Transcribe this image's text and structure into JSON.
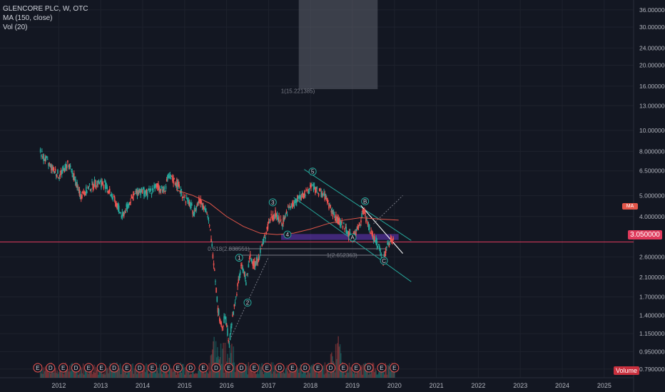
{
  "legend": {
    "symbol": "GLENCORE PLC, W, OTC",
    "ma": "MA (150, close)",
    "vol": "Vol (20)"
  },
  "last_price_label": "3.050000",
  "ma_tag": "MA",
  "volume_tag": "Volume",
  "colors": {
    "background": "#131722",
    "up": "#26a69a",
    "down": "#ef5350",
    "ma": "#e3564a",
    "channel": "#26a69a",
    "last_price": "#e03a5c",
    "zone": "#7b3fe4",
    "text": "#b2b5be"
  },
  "chart_data": {
    "type": "candlestick",
    "scale": "log",
    "ylim": [
      0.72,
      40.0
    ],
    "y_ticks": [
      "36.000000",
      "30.000000",
      "24.000000",
      "20.000000",
      "16.000000",
      "13.000000",
      "10.000000",
      "8.000000",
      "6.500000",
      "5.000000",
      "4.000000",
      "3.050000",
      "2.600000",
      "2.100000",
      "1.700000",
      "1.400000",
      "1.150000",
      "0.950000",
      "0.790000"
    ],
    "y_tick_values": [
      36,
      30,
      24,
      20,
      16,
      13,
      10,
      8,
      6.5,
      5,
      4,
      3.05,
      2.6,
      2.1,
      1.7,
      1.4,
      1.15,
      0.95,
      0.79
    ],
    "x_ticks": [
      "2012",
      "2013",
      "2014",
      "2015",
      "2016",
      "2017",
      "2018",
      "2019",
      "2020",
      "2021",
      "2022",
      "2023",
      "2024",
      "2025"
    ],
    "x_tick_years": [
      2012,
      2013,
      2014,
      2015,
      2016,
      2017,
      2018,
      2019,
      2020,
      2021,
      2022,
      2023,
      2024,
      2025
    ],
    "xlim": [
      2010.6,
      2025.7
    ],
    "price_path": [
      [
        2011.55,
        7.9
      ],
      [
        2011.7,
        7.2
      ],
      [
        2011.85,
        6.6
      ],
      [
        2012.0,
        6.2
      ],
      [
        2012.2,
        7.0
      ],
      [
        2012.35,
        6.1
      ],
      [
        2012.5,
        5.0
      ],
      [
        2012.7,
        5.4
      ],
      [
        2012.9,
        5.8
      ],
      [
        2013.1,
        5.6
      ],
      [
        2013.3,
        4.8
      ],
      [
        2013.5,
        4.0
      ],
      [
        2013.7,
        4.8
      ],
      [
        2013.9,
        5.3
      ],
      [
        2014.1,
        5.1
      ],
      [
        2014.3,
        5.5
      ],
      [
        2014.5,
        5.3
      ],
      [
        2014.6,
        6.1
      ],
      [
        2014.8,
        5.7
      ],
      [
        2014.95,
        5.0
      ],
      [
        2015.1,
        4.6
      ],
      [
        2015.2,
        4.2
      ],
      [
        2015.35,
        4.8
      ],
      [
        2015.5,
        4.3
      ],
      [
        2015.6,
        3.4
      ],
      [
        2015.7,
        2.3
      ],
      [
        2015.78,
        1.5
      ],
      [
        2015.88,
        1.2
      ],
      [
        2015.95,
        1.4
      ],
      [
        2016.05,
        1.05
      ],
      [
        2016.15,
        1.45
      ],
      [
        2016.25,
        1.9
      ],
      [
        2016.35,
        2.4
      ],
      [
        2016.45,
        2.0
      ],
      [
        2016.55,
        2.6
      ],
      [
        2016.65,
        2.4
      ],
      [
        2016.75,
        2.6
      ],
      [
        2016.85,
        3.0
      ],
      [
        2016.95,
        3.5
      ],
      [
        2017.05,
        4.0
      ],
      [
        2017.15,
        4.1
      ],
      [
        2017.3,
        3.7
      ],
      [
        2017.45,
        4.3
      ],
      [
        2017.6,
        4.6
      ],
      [
        2017.75,
        5.0
      ],
      [
        2017.9,
        5.1
      ],
      [
        2018.0,
        5.6
      ],
      [
        2018.1,
        5.3
      ],
      [
        2018.2,
        5.2
      ],
      [
        2018.35,
        4.9
      ],
      [
        2018.5,
        4.2
      ],
      [
        2018.65,
        3.8
      ],
      [
        2018.8,
        3.6
      ],
      [
        2018.95,
        3.2
      ],
      [
        2019.05,
        3.3
      ],
      [
        2019.15,
        3.7
      ],
      [
        2019.25,
        4.3
      ],
      [
        2019.35,
        3.7
      ],
      [
        2019.45,
        3.3
      ],
      [
        2019.55,
        3.1
      ],
      [
        2019.65,
        2.8
      ],
      [
        2019.72,
        2.5
      ],
      [
        2019.8,
        2.9
      ],
      [
        2019.9,
        3.1
      ],
      [
        2019.98,
        3.05
      ]
    ],
    "ma_path": [
      [
        2014.8,
        5.3
      ],
      [
        2015.2,
        5.0
      ],
      [
        2015.6,
        4.6
      ],
      [
        2016.0,
        4.0
      ],
      [
        2016.4,
        3.6
      ],
      [
        2016.8,
        3.35
      ],
      [
        2017.2,
        3.3
      ],
      [
        2017.6,
        3.35
      ],
      [
        2018.0,
        3.5
      ],
      [
        2018.4,
        3.7
      ],
      [
        2018.8,
        3.85
      ],
      [
        2019.2,
        3.95
      ],
      [
        2019.6,
        3.9
      ],
      [
        2020.1,
        3.85
      ]
    ],
    "last_price": 3.05,
    "wave_labels": [
      {
        "label": "1",
        "x": 2016.3,
        "y": 2.58
      },
      {
        "label": "2",
        "x": 2016.5,
        "y": 1.6
      },
      {
        "label": "3",
        "x": 2017.1,
        "y": 4.65
      },
      {
        "label": "4",
        "x": 2017.45,
        "y": 3.3
      },
      {
        "label": "5",
        "x": 2018.05,
        "y": 6.45
      },
      {
        "label": "A",
        "x": 2019.0,
        "y": 3.2
      },
      {
        "label": "B",
        "x": 2019.3,
        "y": 4.7
      },
      {
        "label": "C",
        "x": 2019.75,
        "y": 2.5
      }
    ],
    "fib_labels": [
      {
        "label": "0.618(2.838551)",
        "x": 2016.05,
        "y": 2.838551
      },
      {
        "label": "1(2.652363)",
        "x": 2018.75,
        "y": 2.652363
      },
      {
        "label": "1(15.221385)",
        "x": 2017.7,
        "y": 15.221385
      }
    ],
    "earnings_markers": [
      "E",
      "D",
      "E",
      "D",
      "E",
      "E",
      "D",
      "E",
      "D",
      "E",
      "D",
      "E",
      "D",
      "E",
      "D",
      "E",
      "D",
      "E",
      "E",
      "D",
      "E",
      "D",
      "E",
      "D",
      "E",
      "E",
      "D",
      "E",
      "E"
    ]
  }
}
